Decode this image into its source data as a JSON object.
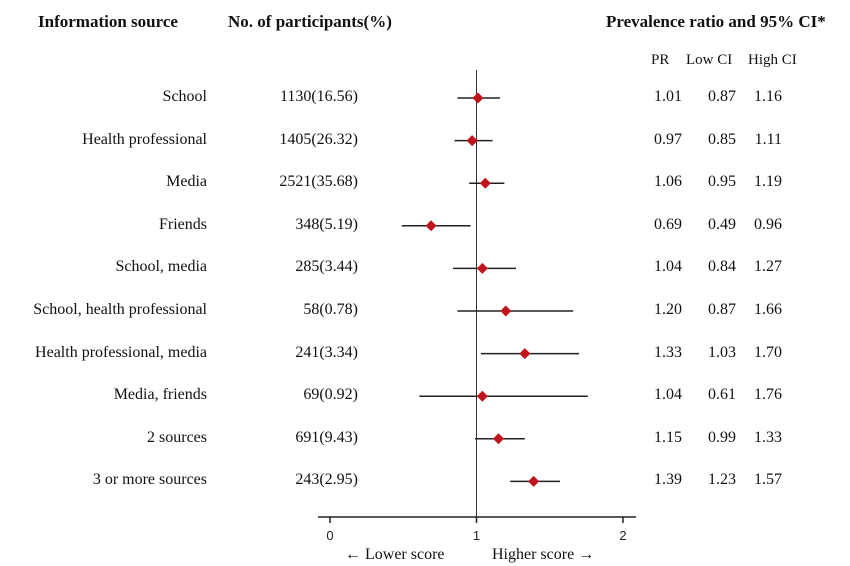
{
  "headers": {
    "information_source": "Information source",
    "participants": "No. of participants(%)",
    "pr_ci": "Prevalence ratio and 95% CI*",
    "pr": "PR",
    "low_ci": "Low CI",
    "high_ci": "High CI"
  },
  "footer": {
    "lower": "← Lower score",
    "higher": "Higher score →"
  },
  "chart_data": {
    "type": "forest",
    "title": "",
    "xlim": [
      0,
      2
    ],
    "xticks": [
      "0",
      "1",
      "2"
    ],
    "reference_line": 1,
    "marker_color": "#c0141c",
    "rows": [
      {
        "source": "School",
        "participants": "1130(16.56)",
        "pr": 1.01,
        "low": 0.87,
        "high": 1.16,
        "pr_text": "1.01",
        "low_text": "0.87",
        "high_text": "1.16"
      },
      {
        "source": "Health professional",
        "participants": "1405(26.32)",
        "pr": 0.97,
        "low": 0.85,
        "high": 1.11,
        "pr_text": "0.97",
        "low_text": "0.85",
        "high_text": "1.11"
      },
      {
        "source": "Media",
        "participants": "2521(35.68)",
        "pr": 1.06,
        "low": 0.95,
        "high": 1.19,
        "pr_text": "1.06",
        "low_text": "0.95",
        "high_text": "1.19"
      },
      {
        "source": "Friends",
        "participants": "348(5.19)",
        "pr": 0.69,
        "low": 0.49,
        "high": 0.96,
        "pr_text": "0.69",
        "low_text": "0.49",
        "high_text": "0.96"
      },
      {
        "source": "School, media",
        "participants": "285(3.44)",
        "pr": 1.04,
        "low": 0.84,
        "high": 1.27,
        "pr_text": "1.04",
        "low_text": "0.84",
        "high_text": "1.27"
      },
      {
        "source": "School, health professional",
        "participants": "58(0.78)",
        "pr": 1.2,
        "low": 0.87,
        "high": 1.66,
        "pr_text": "1.20",
        "low_text": "0.87",
        "high_text": "1.66"
      },
      {
        "source": "Health professional, media",
        "participants": "241(3.34)",
        "pr": 1.33,
        "low": 1.03,
        "high": 1.7,
        "pr_text": "1.33",
        "low_text": "1.03",
        "high_text": "1.70"
      },
      {
        "source": "Media, friends",
        "participants": "69(0.92)",
        "pr": 1.04,
        "low": 0.61,
        "high": 1.76,
        "pr_text": "1.04",
        "low_text": "0.61",
        "high_text": "1.76"
      },
      {
        "source": "2 sources",
        "participants": "691(9.43)",
        "pr": 1.15,
        "low": 0.99,
        "high": 1.33,
        "pr_text": "1.15",
        "low_text": "0.99",
        "high_text": "1.33"
      },
      {
        "source": "3 or more sources",
        "participants": "243(2.95)",
        "pr": 1.39,
        "low": 1.23,
        "high": 1.57,
        "pr_text": "1.39",
        "low_text": "1.23",
        "high_text": "1.57"
      }
    ]
  }
}
